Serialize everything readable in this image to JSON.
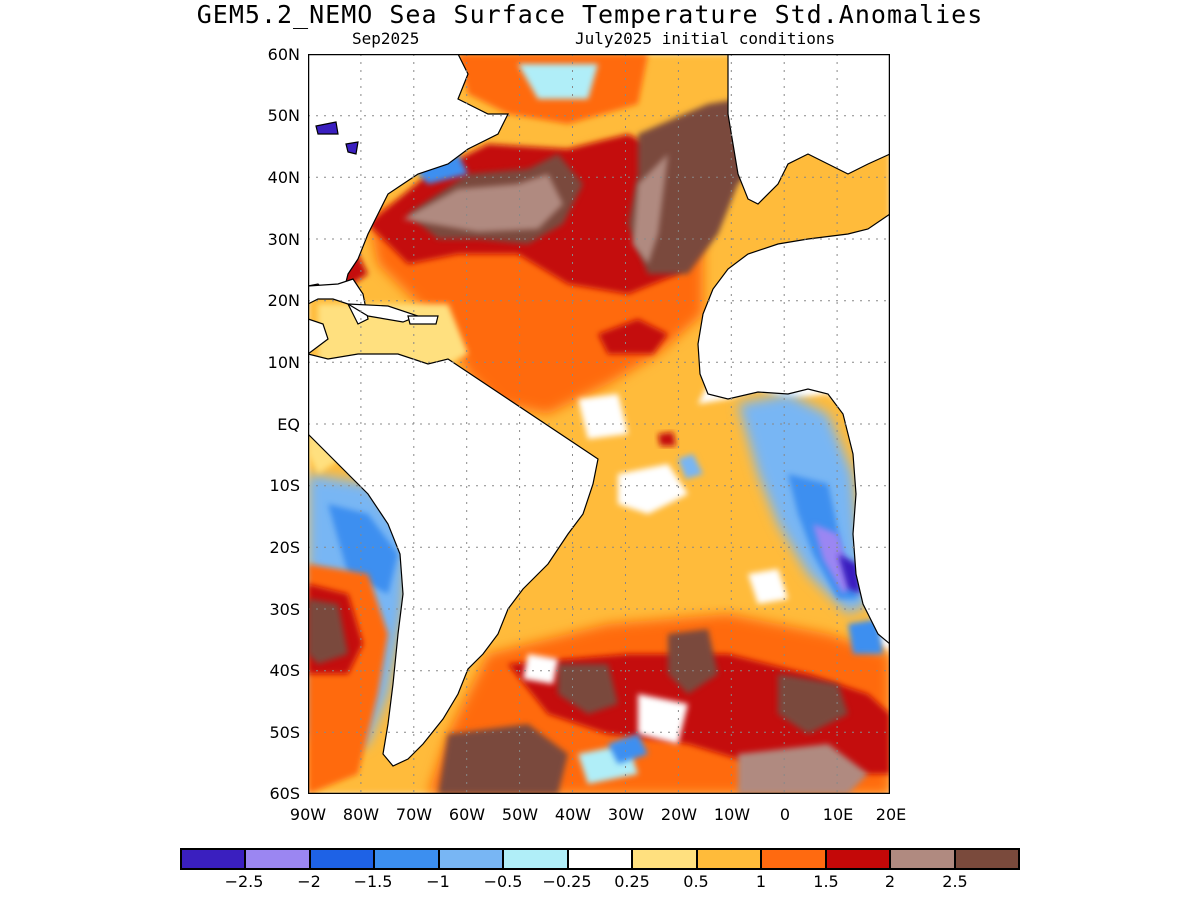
{
  "header": {
    "title": "GEM5.2_NEMO Sea Surface Temperature Std.Anomalies",
    "valid_month": "Sep2025",
    "init": "July2025 initial conditions"
  },
  "map": {
    "lat_labels": [
      "60N",
      "50N",
      "40N",
      "30N",
      "20N",
      "10N",
      "EQ",
      "10S",
      "20S",
      "30S",
      "40S",
      "50S",
      "60S"
    ],
    "lon_labels": [
      "90W",
      "80W",
      "70W",
      "60W",
      "50W",
      "40W",
      "30W",
      "20W",
      "10W",
      "0",
      "10E",
      "20E"
    ],
    "lat_range": [
      -60,
      60
    ],
    "lon_range": [
      -90,
      20
    ],
    "grid": "dotted"
  },
  "colorbar": {
    "colors": [
      "#3a1fbf",
      "#9b86f2",
      "#1e62e6",
      "#3c8ff0",
      "#78b6f4",
      "#b0eef8",
      "#ffffff",
      "#ffe07f",
      "#ffbb3a",
      "#ff6a10",
      "#c40808",
      "#b08a80",
      "#7a4a3c"
    ],
    "labels": [
      "−2.5",
      "−2",
      "−1.5",
      "−1",
      "−0.5",
      "−0.25",
      "0.25",
      "0.5",
      "1",
      "1.5",
      "2",
      "2.5"
    ]
  },
  "colors": {
    "land": "#ffffff",
    "background": "#ffffff"
  }
}
